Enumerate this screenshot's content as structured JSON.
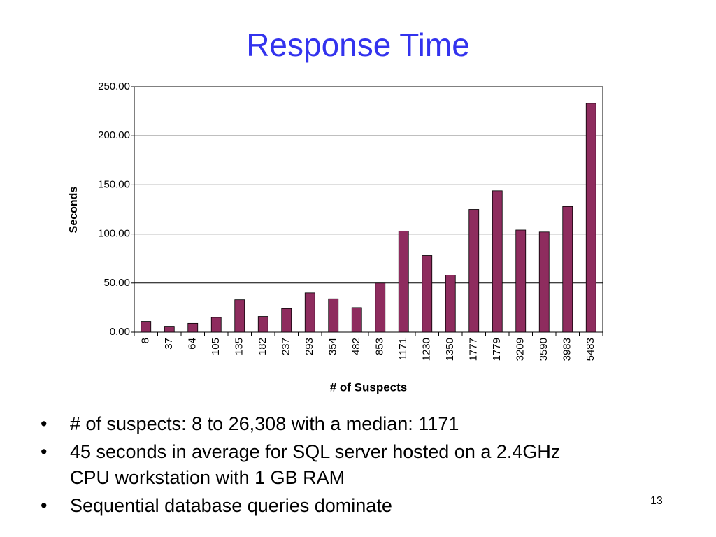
{
  "chart_data": {
    "type": "bar",
    "title": "Response Time",
    "x_label": "# of Suspects",
    "y_label": "Seconds",
    "categories": [
      "8",
      "37",
      "64",
      "105",
      "135",
      "182",
      "237",
      "293",
      "354",
      "482",
      "853",
      "1171",
      "1230",
      "1350",
      "1777",
      "1779",
      "3209",
      "3590",
      "3983",
      "5483"
    ],
    "values": [
      11,
      6,
      9,
      15,
      33,
      16,
      24,
      40,
      34,
      25,
      50,
      103,
      78,
      58,
      125,
      144,
      104,
      102,
      128,
      233
    ],
    "color": "#8e2c5e",
    "ylim": [
      0,
      250
    ],
    "yticks": [
      {
        "value": 0,
        "label": "0.00"
      },
      {
        "value": 50,
        "label": "50.00"
      },
      {
        "value": 100,
        "label": "100.00"
      },
      {
        "value": 150,
        "label": "150.00"
      },
      {
        "value": 200,
        "label": "200.00"
      },
      {
        "value": 250,
        "label": "250.00"
      }
    ],
    "grid": true
  },
  "bullets": [
    "# of suspects: 8 to 26,308 with a median: 1171",
    "45 seconds in average for SQL server hosted on a 2.4GHz CPU workstation with 1 GB RAM",
    "Sequential database queries dominate"
  ],
  "page_number": "13"
}
